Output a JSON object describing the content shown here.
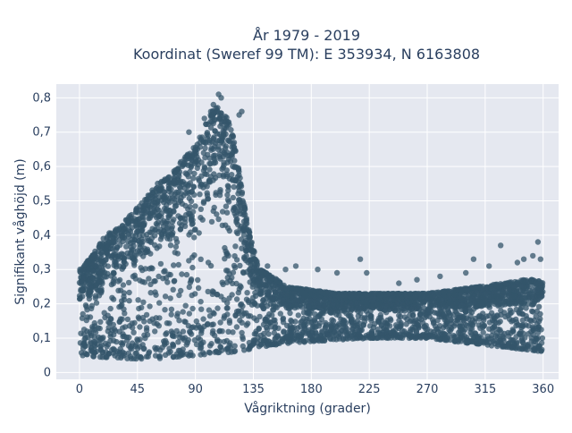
{
  "chart_data": {
    "type": "scatter",
    "title": "År 1979 - 2019",
    "subtitle": "Koordinat (Sweref 99 TM): E 353934, N 6163808",
    "xlabel": "Vågriktning (grader)",
    "ylabel": "Signifikant våghöjd (m)",
    "xlim": [
      -18,
      372
    ],
    "ylim": [
      -0.02,
      0.84
    ],
    "xticks": [
      0,
      45,
      90,
      135,
      180,
      225,
      270,
      315,
      360
    ],
    "xtick_labels": [
      "0",
      "45",
      "90",
      "135",
      "180",
      "225",
      "270",
      "315",
      "360"
    ],
    "yticks": [
      0,
      0.1,
      0.2,
      0.3,
      0.4,
      0.5,
      0.6,
      0.7,
      0.8
    ],
    "ytick_labels": [
      "0",
      "0,1",
      "0,2",
      "0,3",
      "0,4",
      "0,5",
      "0,6",
      "0,7",
      "0,8"
    ],
    "grid": true,
    "marker_color": "#34566b",
    "plot_bg_color": "#e5e8f0",
    "series": [
      {
        "upper_envelope": {
          "x": [
            0,
            10,
            20,
            30,
            40,
            50,
            60,
            70,
            80,
            90,
            100,
            105,
            110,
            115,
            120,
            125,
            130,
            135,
            140,
            150,
            160,
            180,
            200,
            225,
            250,
            270,
            290,
            310,
            330,
            345,
            355,
            360
          ],
          "y": [
            0.3,
            0.34,
            0.4,
            0.42,
            0.46,
            0.5,
            0.55,
            0.57,
            0.62,
            0.66,
            0.74,
            0.78,
            0.76,
            0.74,
            0.68,
            0.56,
            0.44,
            0.36,
            0.3,
            0.28,
            0.25,
            0.24,
            0.23,
            0.23,
            0.23,
            0.23,
            0.24,
            0.25,
            0.26,
            0.27,
            0.27,
            0.26
          ]
        },
        "lower_envelope": {
          "x": [
            0,
            30,
            60,
            90,
            120,
            135,
            150,
            180,
            225,
            270,
            315,
            360
          ],
          "y": [
            0.05,
            0.04,
            0.04,
            0.05,
            0.06,
            0.07,
            0.08,
            0.09,
            0.1,
            0.1,
            0.08,
            0.06
          ]
        },
        "outliers": {
          "x": [
            108,
            110,
            104,
            124,
            126,
            85,
            97,
            102,
            115,
            146,
            160,
            168,
            185,
            200,
            218,
            223,
            248,
            262,
            280,
            300,
            306,
            318,
            327,
            340,
            345,
            352,
            356,
            358
          ],
          "y": [
            0.81,
            0.8,
            0.78,
            0.75,
            0.76,
            0.7,
            0.74,
            0.76,
            0.73,
            0.31,
            0.3,
            0.31,
            0.3,
            0.29,
            0.33,
            0.29,
            0.26,
            0.27,
            0.28,
            0.29,
            0.33,
            0.31,
            0.37,
            0.32,
            0.33,
            0.34,
            0.38,
            0.33
          ]
        }
      }
    ]
  }
}
